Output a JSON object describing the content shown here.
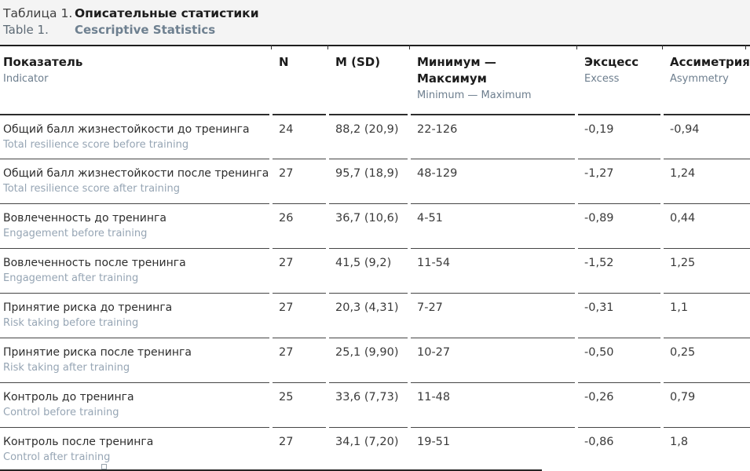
{
  "title": {
    "label_ru": "Таблица 1.",
    "title_ru": "Описательные статистики",
    "label_en": "Table 1.",
    "title_en": "Cescriptive Statistics"
  },
  "columns": [
    {
      "ru": "Показатель",
      "en": "Indicator"
    },
    {
      "ru": "N",
      "en": ""
    },
    {
      "ru": "M (SD)",
      "en": ""
    },
    {
      "ru": "Минимум — Максимум",
      "en": "Minimum — Maximum"
    },
    {
      "ru": "Эксцесс",
      "en": "Excess"
    },
    {
      "ru": "Ассиметрия",
      "en": "Asymmetry"
    }
  ],
  "rows": [
    {
      "indicator_ru": "Общий балл жизнестойкости до тренинга",
      "indicator_en": "Total resilience score before training",
      "n": "24",
      "m_sd": "88,2 (20,9)",
      "min_max": "22-126",
      "excess": "-0,19",
      "asymmetry": "-0,94"
    },
    {
      "indicator_ru": "Общий балл жизнестойкости после тренинга",
      "indicator_en": "Total resilience score after training",
      "n": "27",
      "m_sd": "95,7 (18,9)",
      "min_max": "48-129",
      "excess": "-1,27",
      "asymmetry": "1,24"
    },
    {
      "indicator_ru": "Вовлеченность до тренинга",
      "indicator_en": "Engagement before training",
      "n": "26",
      "m_sd": "36,7 (10,6)",
      "min_max": "4-51",
      "excess": "-0,89",
      "asymmetry": "0,44"
    },
    {
      "indicator_ru": "Вовлеченность после тренинга",
      "indicator_en": "Engagement after training",
      "n": "27",
      "m_sd": "41,5 (9,2)",
      "min_max": "11-54",
      "excess": "-1,52",
      "asymmetry": "1,25"
    },
    {
      "indicator_ru": "Принятие риска до тренинга",
      "indicator_en": "Risk taking before training",
      "n": "27",
      "m_sd": "20,3 (4,31)",
      "min_max": "7-27",
      "excess": "-0,31",
      "asymmetry": "1,1"
    },
    {
      "indicator_ru": "Принятие риска после тренинга",
      "indicator_en": "Risk taking after training",
      "n": "27",
      "m_sd": "25,1 (9,90)",
      "min_max": "10-27",
      "excess": "-0,50",
      "asymmetry": "0,25"
    },
    {
      "indicator_ru": "Контроль до тренинга",
      "indicator_en": "Control before training",
      "n": "25",
      "m_sd": "33,6 (7,73)",
      "min_max": "11-48",
      "excess": "-0,26",
      "asymmetry": "0,79"
    },
    {
      "indicator_ru": "Контроль после тренинга",
      "indicator_en": "Control after training",
      "n": "27",
      "m_sd": "34,1 (7,20)",
      "min_max": "19-51",
      "excess": "-0,86",
      "asymmetry": "1,8"
    }
  ],
  "colors": {
    "caption_background": "#f4f4f4",
    "rule_dark": "#1f1f1f",
    "row_rule": "#454545",
    "text_dark": "#2e2e2e",
    "text_slate_en": "#6d7e8e",
    "text_light_en": "#96a5b4"
  }
}
